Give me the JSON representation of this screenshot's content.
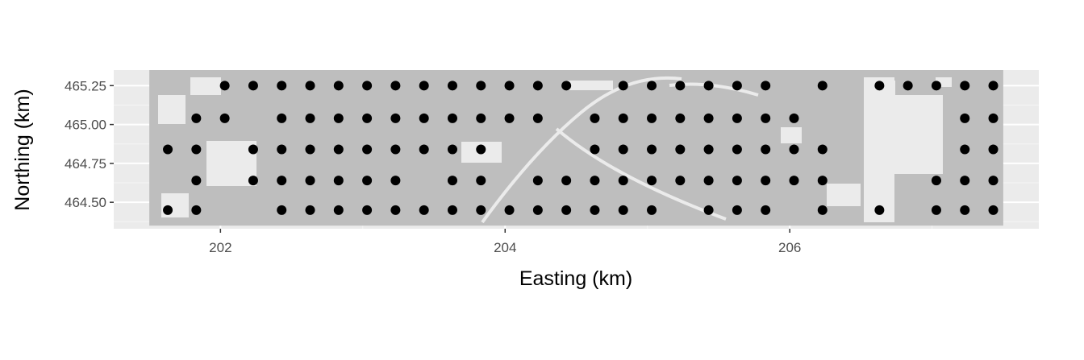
{
  "chart_data": {
    "type": "scatter",
    "title": "",
    "xlabel": "Easting (km)",
    "ylabel": "Northing (km)",
    "xlim": [
      201.25,
      207.75
    ],
    "ylim": [
      464.33,
      465.35
    ],
    "x_ticks": [
      202,
      204,
      206
    ],
    "x_tick_labels": [
      "202",
      "204",
      "206"
    ],
    "y_ticks": [
      464.5,
      464.75,
      465.0,
      465.25
    ],
    "y_tick_labels": [
      "464.50",
      "464.75",
      "465.00",
      "465.25"
    ],
    "grid": true,
    "background": {
      "type": "raster",
      "xrange": [
        201.5,
        207.5
      ],
      "yrange": [
        464.35,
        465.35
      ],
      "color": "#bebebe",
      "note_values": "grey raster cells showing a land-cover mask"
    },
    "series": [
      {
        "marker_color": "#000000",
        "points": [
          {
            "row": 465.25,
            "x": [
              202.03,
              202.23,
              202.43,
              202.63,
              202.83,
              203.03,
              203.23,
              203.43,
              203.63,
              203.83,
              204.03,
              204.23,
              204.43,
              204.83,
              205.03,
              205.23,
              205.43,
              205.63,
              205.83,
              206.23,
              206.63,
              206.83,
              207.03,
              207.23,
              207.43
            ]
          },
          {
            "row": 465.04,
            "x": [
              201.83,
              202.03,
              202.43,
              202.63,
              202.83,
              203.03,
              203.23,
              203.43,
              203.63,
              203.83,
              204.03,
              204.23,
              204.63,
              204.83,
              205.03,
              205.23,
              205.43,
              205.63,
              205.83,
              206.03,
              207.23,
              207.43
            ]
          },
          {
            "row": 464.84,
            "x": [
              201.63,
              201.83,
              202.23,
              202.43,
              202.63,
              202.83,
              203.03,
              203.23,
              203.43,
              203.63,
              203.83,
              204.63,
              204.83,
              205.03,
              205.23,
              205.43,
              205.63,
              205.83,
              206.03,
              206.23,
              207.23,
              207.43
            ]
          },
          {
            "row": 464.64,
            "x": [
              201.83,
              202.23,
              202.43,
              202.63,
              202.83,
              203.03,
              203.23,
              203.63,
              203.83,
              204.23,
              204.43,
              204.63,
              204.83,
              205.03,
              205.23,
              205.43,
              205.63,
              205.83,
              206.03,
              206.23,
              207.03,
              207.23,
              207.43
            ]
          },
          {
            "row": 464.45,
            "x": [
              201.63,
              201.83,
              202.43,
              202.63,
              202.83,
              203.03,
              203.23,
              203.43,
              203.63,
              203.83,
              204.03,
              204.23,
              204.43,
              204.63,
              204.83,
              205.03,
              205.43,
              205.63,
              205.83,
              206.23,
              206.63,
              207.03,
              207.23,
              207.43
            ]
          }
        ]
      }
    ]
  }
}
